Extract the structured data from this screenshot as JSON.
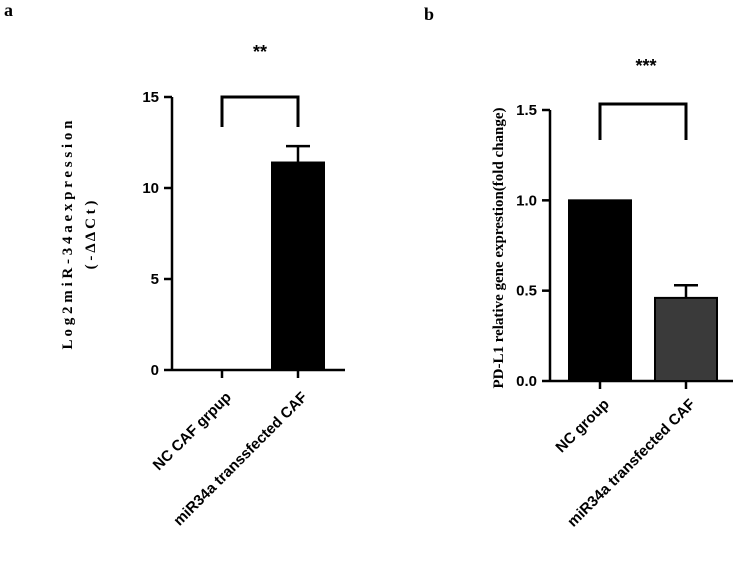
{
  "chart_data": [
    {
      "panel": "a",
      "type": "bar",
      "ylabel_line1": "L o g 2 m i R - 3 4 a e x p r e s s i o n",
      "ylabel_line2": "( - Δ Δ C t )",
      "categories": [
        "NC CAF grpup",
        "miR34a transsfected CAF"
      ],
      "values": [
        0,
        11.4
      ],
      "errors": [
        0,
        0.9
      ],
      "ylim": [
        0,
        15
      ],
      "yticks": [
        0,
        5,
        10,
        15
      ],
      "significance": "**",
      "bar_colors": [
        "#000000",
        "#000000"
      ]
    },
    {
      "panel": "b",
      "type": "bar",
      "ylabel": "PD-L1 relative gene exprestion(fold change)",
      "categories": [
        "NC group",
        "miR34a transfected CAF"
      ],
      "values": [
        1.0,
        0.46
      ],
      "errors": [
        0,
        0.07
      ],
      "ylim": [
        0,
        1.5
      ],
      "yticks": [
        0.0,
        0.5,
        1.0,
        1.5
      ],
      "significance": "***",
      "bar_colors": [
        "#000000",
        "#3a3a3a"
      ]
    }
  ]
}
